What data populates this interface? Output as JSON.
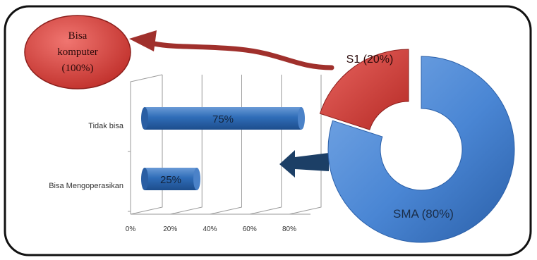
{
  "colors": {
    "frame": "#111111",
    "bar_blue": "#2f6db8",
    "bar_blue_light": "#6a9ad6",
    "red": "#d23c36",
    "red_dark": "#8c1f1c",
    "donut_blue": "#4a86d4",
    "donut_blue_dark": "#24589a",
    "arrow_navy": "#1c3f66"
  },
  "callouts": {
    "bisa_komputer": {
      "line1": "Bisa",
      "line2": "komputer",
      "line3": "(100%)"
    },
    "s1_label": "S1 (20%)",
    "sma_label": "SMA  (80%)"
  },
  "chart_data": [
    {
      "type": "pie",
      "style": "donut",
      "title": "",
      "slices": [
        {
          "label": "S1",
          "value": 20
        },
        {
          "label": "SMA",
          "value": 80
        }
      ]
    },
    {
      "type": "bar",
      "orientation": "horizontal",
      "title": "",
      "xlabel": "",
      "ylabel": "",
      "xlim": [
        0,
        80
      ],
      "xticks": [
        "0%",
        "20%",
        "40%",
        "60%",
        "80%"
      ],
      "grid": true,
      "categories": [
        "Tidak bisa",
        "Bisa Mengoperasikan"
      ],
      "values": [
        75,
        25
      ],
      "data_labels": [
        "75%",
        "25%"
      ]
    }
  ]
}
